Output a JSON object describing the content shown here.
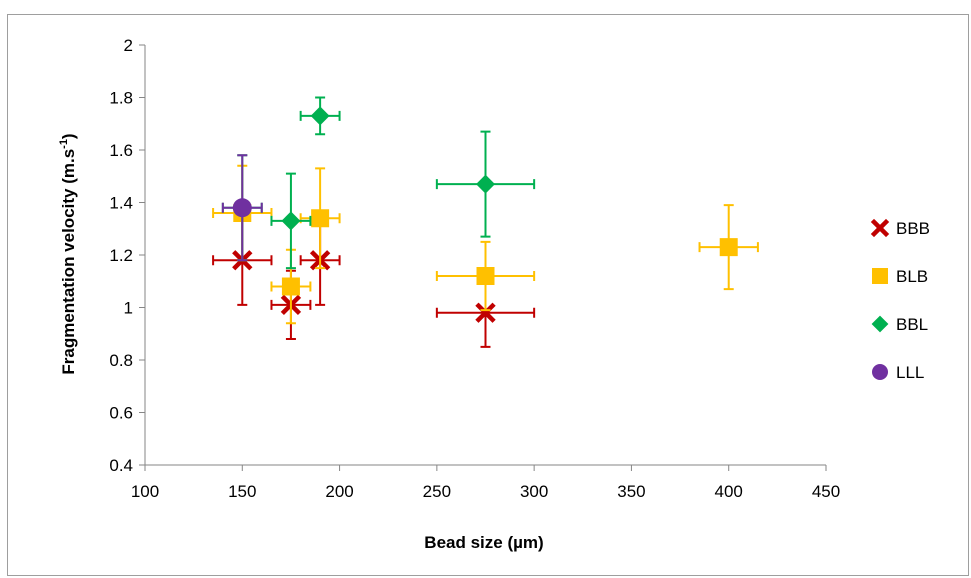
{
  "chart_data": {
    "type": "scatter",
    "title": "",
    "xlabel": "Bead size (µm)",
    "ylabel_main": "Fragmentation velocity (m.s",
    "ylabel_sup": "-1",
    "ylabel_end": ")",
    "xlim": [
      100,
      450
    ],
    "ylim": [
      0.4,
      2
    ],
    "x_ticks": [
      100,
      150,
      200,
      250,
      300,
      350,
      400,
      450
    ],
    "y_ticks": [
      0.4,
      0.6,
      0.8,
      1,
      1.2,
      1.4,
      1.6,
      1.8,
      2
    ],
    "x_tick_labels": [
      "100",
      "150",
      "200",
      "250",
      "300",
      "350",
      "400",
      "450"
    ],
    "y_tick_labels": [
      "0.4",
      "0.6",
      "0.8",
      "1",
      "1.2",
      "1.4",
      "1.6",
      "1.8",
      "2"
    ],
    "grid": false,
    "legend_position": "right",
    "series": [
      {
        "name": "BBB",
        "color": "#c00000",
        "marker": "x",
        "points": [
          {
            "x": 150,
            "y": 1.18,
            "xerr": 15,
            "yerr": 0.17
          },
          {
            "x": 175,
            "y": 1.01,
            "xerr": 10,
            "yerr": 0.13
          },
          {
            "x": 190,
            "y": 1.18,
            "xerr": 10,
            "yerr": 0.17
          },
          {
            "x": 275,
            "y": 0.98,
            "xerr": 25,
            "yerr": 0.13
          }
        ]
      },
      {
        "name": "BLB",
        "color": "#ffc000",
        "marker": "square",
        "points": [
          {
            "x": 150,
            "y": 1.36,
            "xerr": 15,
            "yerr": 0.18
          },
          {
            "x": 175,
            "y": 1.08,
            "xerr": 10,
            "yerr": 0.14
          },
          {
            "x": 190,
            "y": 1.34,
            "xerr": 10,
            "yerr": 0.19
          },
          {
            "x": 275,
            "y": 1.12,
            "xerr": 25,
            "yerr": 0.13
          },
          {
            "x": 400,
            "y": 1.23,
            "xerr": 15,
            "yerr": 0.16
          }
        ]
      },
      {
        "name": "BBL",
        "color": "#00b050",
        "marker": "diamond",
        "points": [
          {
            "x": 150,
            "y": 1.38,
            "xerr": 10,
            "yerr": 0.2
          },
          {
            "x": 175,
            "y": 1.33,
            "xerr": 10,
            "yerr": 0.18
          },
          {
            "x": 190,
            "y": 1.73,
            "xerr": 10,
            "yerr": 0.07
          },
          {
            "x": 275,
            "y": 1.47,
            "xerr": 25,
            "yerr": 0.2
          }
        ]
      },
      {
        "name": "LLL",
        "color": "#7030a0",
        "marker": "circle",
        "points": [
          {
            "x": 150,
            "y": 1.38,
            "xerr": 10,
            "yerr": 0.2
          }
        ]
      }
    ]
  }
}
